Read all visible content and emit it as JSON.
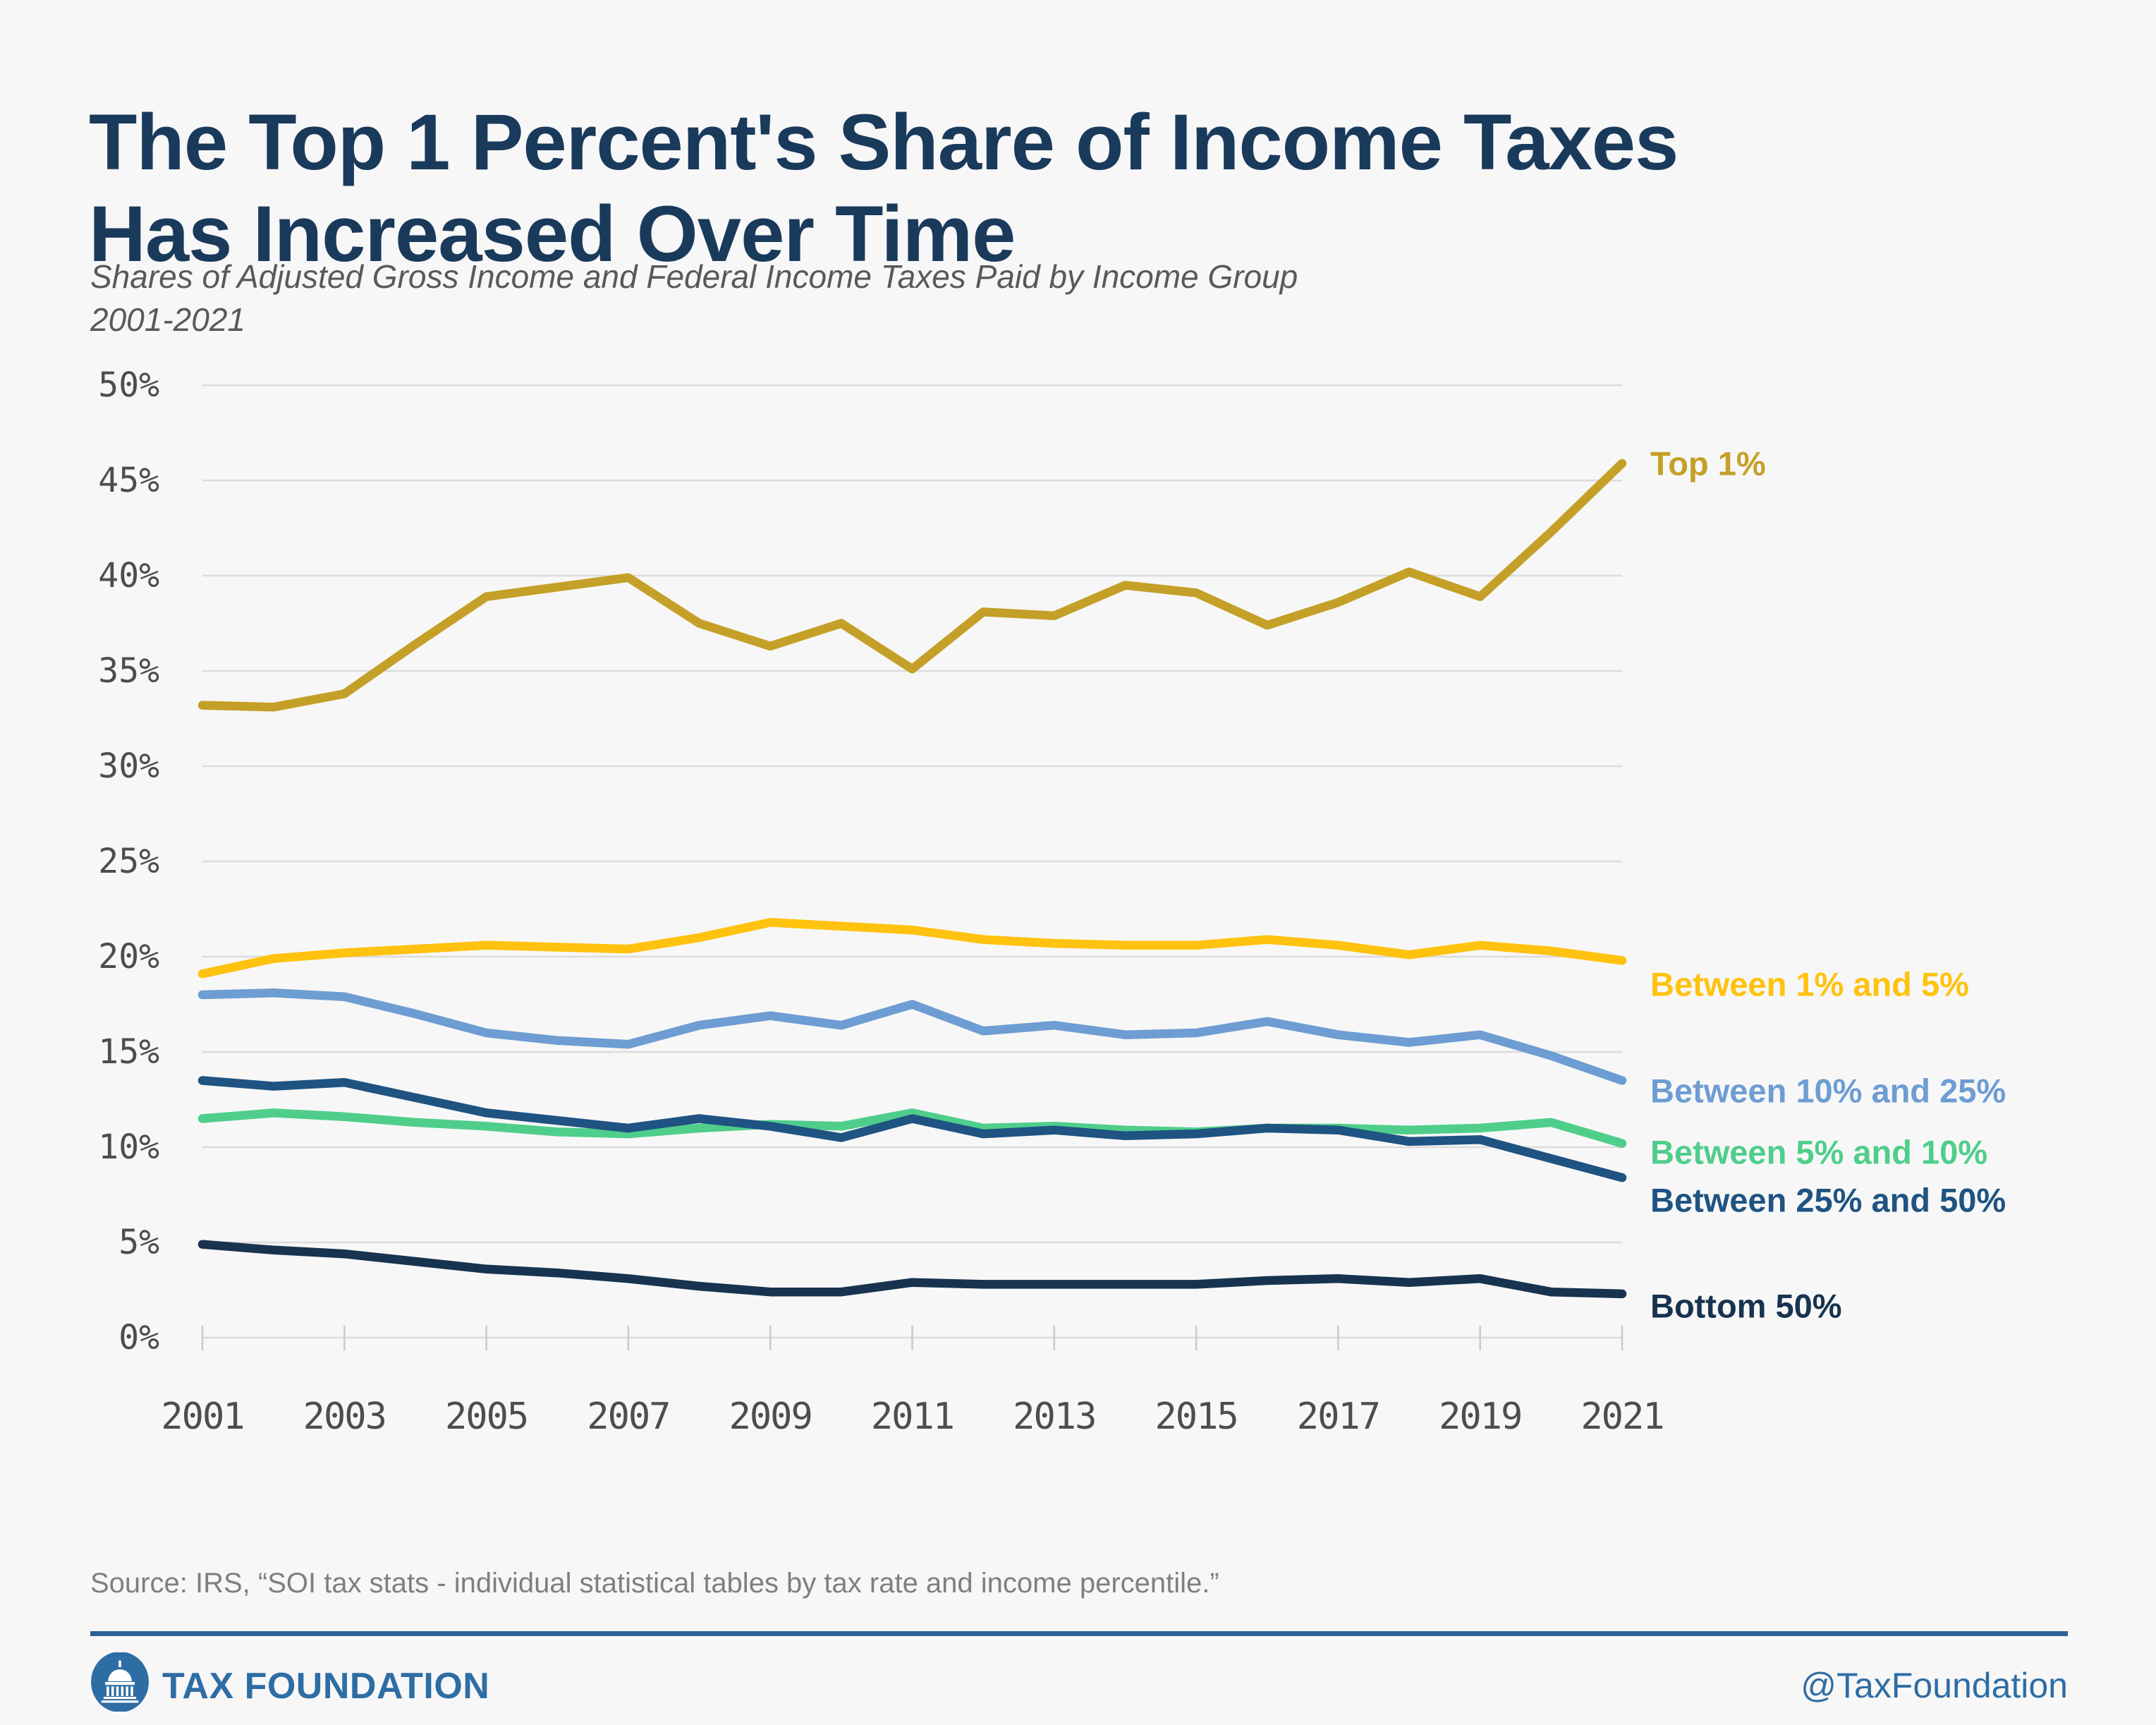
{
  "page": {
    "background": "#F7F7F7"
  },
  "header": {
    "title": "The Top 1 Percent's Share of Income Taxes\nHas Increased Over Time",
    "subtitle": "Shares of Adjusted Gross Income and Federal Income Taxes Paid by Income Group\n2001-2021"
  },
  "chart_data": {
    "type": "line",
    "title": "Shares of Adjusted Gross Income and Federal Income Taxes Paid by Income Group 2001-2021",
    "xlabel": "",
    "ylabel": "",
    "ylim": [
      0,
      50
    ],
    "grid": true,
    "legend_position": "right-end-labels",
    "y_ticks": [
      0,
      5,
      10,
      15,
      20,
      25,
      30,
      35,
      40,
      45,
      50
    ],
    "y_tick_suffix": "%",
    "x_ticks": [
      2001,
      2003,
      2005,
      2007,
      2009,
      2011,
      2013,
      2015,
      2017,
      2019,
      2021
    ],
    "x": [
      2001,
      2002,
      2003,
      2004,
      2005,
      2006,
      2007,
      2008,
      2009,
      2010,
      2011,
      2012,
      2013,
      2014,
      2015,
      2016,
      2017,
      2018,
      2019,
      2020,
      2021
    ],
    "series": [
      {
        "id": "top1",
        "name": "Top 1%",
        "color": "#C5A028",
        "values": [
          33.2,
          33.1,
          33.8,
          36.4,
          38.9,
          39.4,
          39.9,
          37.5,
          36.3,
          37.5,
          35.1,
          38.1,
          37.9,
          39.5,
          39.1,
          37.4,
          38.6,
          40.2,
          38.9,
          42.3,
          45.9
        ]
      },
      {
        "id": "between_1_5",
        "name": "Between 1% and 5%",
        "color": "#FFC20E",
        "values": [
          19.1,
          19.9,
          20.2,
          20.4,
          20.6,
          20.5,
          20.4,
          21.0,
          21.8,
          21.6,
          21.4,
          20.9,
          20.7,
          20.6,
          20.6,
          20.9,
          20.6,
          20.1,
          20.6,
          20.3,
          19.8
        ]
      },
      {
        "id": "between_10_25",
        "name": "Between 10% and 25%",
        "color": "#6D9DD2",
        "values": [
          18.0,
          18.1,
          17.9,
          17.0,
          16.0,
          15.6,
          15.4,
          16.4,
          16.9,
          16.4,
          17.5,
          16.1,
          16.4,
          15.9,
          16.0,
          16.6,
          15.9,
          15.5,
          15.9,
          14.8,
          13.5
        ]
      },
      {
        "id": "between_5_10",
        "name": "Between 5% and 10%",
        "color": "#4FCE8B",
        "values": [
          11.5,
          11.8,
          11.6,
          11.3,
          11.1,
          10.8,
          10.7,
          11.0,
          11.2,
          11.1,
          11.8,
          11.0,
          11.1,
          10.9,
          10.8,
          11.0,
          11.0,
          10.9,
          11.0,
          11.3,
          10.2
        ]
      },
      {
        "id": "between_25_50",
        "name": "Between 25% and 50%",
        "color": "#1F5382",
        "values": [
          13.5,
          13.2,
          13.4,
          12.6,
          11.8,
          11.4,
          11.0,
          11.5,
          11.1,
          10.5,
          11.5,
          10.7,
          10.9,
          10.6,
          10.7,
          11.0,
          10.9,
          10.3,
          10.4,
          9.4,
          8.4
        ]
      },
      {
        "id": "bottom_50",
        "name": "Bottom 50%",
        "color": "#17334F",
        "values": [
          4.9,
          4.6,
          4.4,
          4.0,
          3.6,
          3.4,
          3.1,
          2.7,
          2.4,
          2.4,
          2.9,
          2.8,
          2.8,
          2.8,
          2.8,
          3.0,
          3.1,
          2.9,
          3.1,
          2.4,
          2.3
        ]
      }
    ]
  },
  "source": {
    "text": "Source: IRS, “SOI tax stats - individual statistical tables by tax rate and income percentile.”"
  },
  "footer": {
    "brand": "TAX FOUNDATION",
    "handle": "@TaxFoundation",
    "accent": "#2E6DA4"
  }
}
